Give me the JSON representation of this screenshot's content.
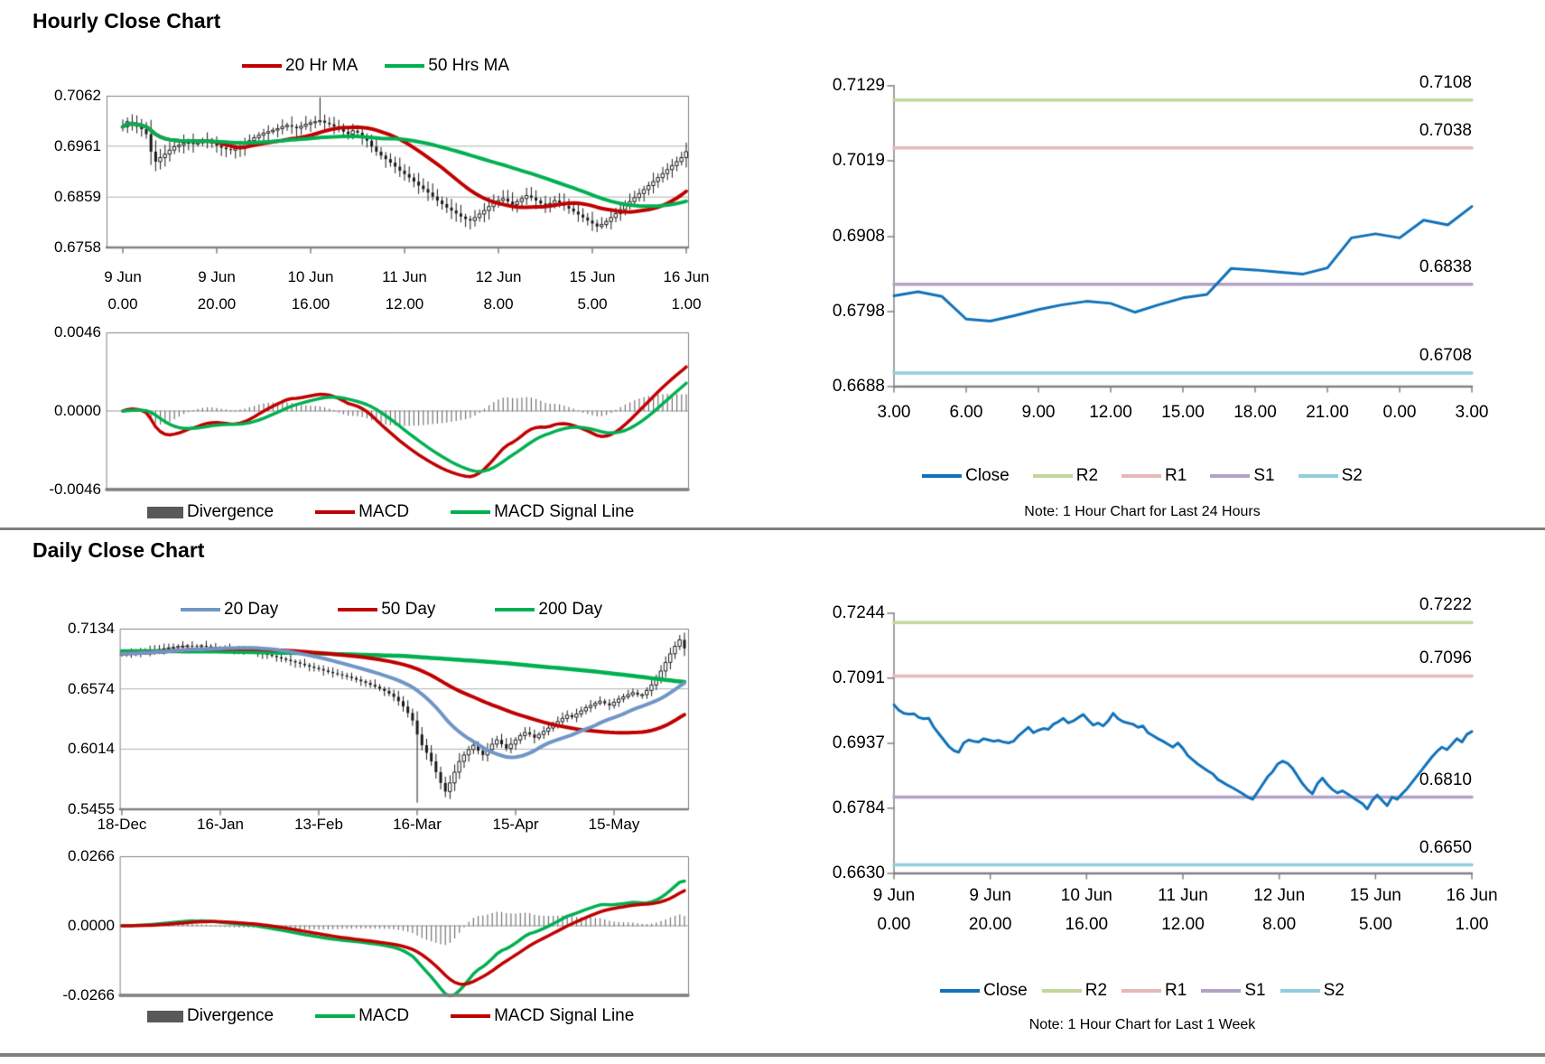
{
  "colors": {
    "red": "#c00000",
    "green": "#00b050",
    "steel_blue": "#7096c5",
    "close_blue": "#1072ba",
    "r2": "#c3d69b",
    "r1": "#e5b9b7",
    "s1": "#b2a2c7",
    "s2": "#92cddc",
    "divergence": "#595959",
    "axis": "#808080",
    "grid": "#b0b0b0",
    "candle": "#1a1a1a"
  },
  "chart_data": {
    "hourly": {
      "title": "Hourly Close Chart",
      "price": {
        "type": "candlestick",
        "y_ticks": [
          "0.7062",
          "0.6961",
          "0.6859",
          "0.6758"
        ],
        "ylim": [
          0.6758,
          0.7062
        ],
        "x_ticks": [
          {
            "date": "9 Jun",
            "time": "0.00"
          },
          {
            "date": "9 Jun",
            "time": "20.00"
          },
          {
            "date": "10 Jun",
            "time": "16.00"
          },
          {
            "date": "11 Jun",
            "time": "12.00"
          },
          {
            "date": "12 Jun",
            "time": "8.00"
          },
          {
            "date": "15 Jun",
            "time": "5.00"
          },
          {
            "date": "16 Jun",
            "time": "1.00"
          }
        ],
        "legend": [
          {
            "label": "20 Hr MA",
            "color": "#c00000"
          },
          {
            "label": "50 Hrs MA",
            "color": "#00b050"
          }
        ],
        "ma_periods": [
          20,
          50
        ],
        "spike_high": {
          "index": 42,
          "value": 0.7058
        },
        "closes": [
          0.7,
          0.701,
          0.7008,
          0.7,
          0.6995,
          0.6985,
          0.695,
          0.693,
          0.6938,
          0.6945,
          0.6953,
          0.696,
          0.6963,
          0.6967,
          0.697,
          0.6965,
          0.6968,
          0.6972,
          0.697,
          0.6966,
          0.6962,
          0.6958,
          0.6955,
          0.6953,
          0.6956,
          0.696,
          0.6965,
          0.6972,
          0.6978,
          0.6983,
          0.6987,
          0.699,
          0.6993,
          0.6996,
          0.7,
          0.7003,
          0.7,
          0.6997,
          0.7001,
          0.7005,
          0.7008,
          0.701,
          0.7012,
          0.7008,
          0.7005,
          0.7,
          0.6995,
          0.699,
          0.6985,
          0.6992,
          0.6988,
          0.698,
          0.6972,
          0.696,
          0.695,
          0.6942,
          0.6935,
          0.6928,
          0.692,
          0.6912,
          0.6905,
          0.6898,
          0.689,
          0.6882,
          0.6875,
          0.6868,
          0.686,
          0.6852,
          0.6845,
          0.6838,
          0.6832,
          0.6826,
          0.682,
          0.6815,
          0.6812,
          0.6818,
          0.6825,
          0.6832,
          0.684,
          0.6847,
          0.6852,
          0.6856,
          0.685,
          0.6844,
          0.685,
          0.6856,
          0.6862,
          0.6858,
          0.6852,
          0.6846,
          0.684,
          0.6846,
          0.6852,
          0.6848,
          0.6842,
          0.6836,
          0.683,
          0.6824,
          0.6818,
          0.6812,
          0.6806,
          0.68,
          0.6804,
          0.681,
          0.6818,
          0.6826,
          0.6834,
          0.6842,
          0.685,
          0.6858,
          0.6866,
          0.6874,
          0.6882,
          0.689,
          0.6898,
          0.6906,
          0.6914,
          0.6922,
          0.693,
          0.6938,
          0.695
        ]
      },
      "macd": {
        "type": "bar+line",
        "y_ticks": [
          "0.0046",
          "0.0000",
          "-0.0046"
        ],
        "ylim": [
          -0.0046,
          0.0046
        ],
        "legend": [
          {
            "label": "Divergence",
            "color": "#595959",
            "shape": "bar"
          },
          {
            "label": "MACD",
            "color": "#c00000"
          },
          {
            "label": "MACD Signal Line",
            "color": "#00b050"
          }
        ]
      }
    },
    "hourly_pivot": {
      "type": "line",
      "note": "Note: 1 Hour Chart for Last 24 Hours",
      "y_ticks": [
        "0.7129",
        "0.7019",
        "0.6908",
        "0.6798",
        "0.6688"
      ],
      "ylim": [
        0.6688,
        0.7129
      ],
      "x_ticks": [
        "3.00",
        "6.00",
        "9.00",
        "12.00",
        "15.00",
        "18.00",
        "21.00",
        "0.00",
        "3.00"
      ],
      "legend": [
        {
          "label": "Close",
          "color": "#1072ba"
        },
        {
          "label": "R2",
          "color": "#c3d69b"
        },
        {
          "label": "R1",
          "color": "#e5b9b7"
        },
        {
          "label": "S1",
          "color": "#b2a2c7"
        },
        {
          "label": "S2",
          "color": "#92cddc"
        }
      ],
      "levels": [
        {
          "name": "R2",
          "value": 0.7108,
          "label": "0.7108",
          "color": "#c3d69b"
        },
        {
          "name": "R1",
          "value": 0.7038,
          "label": "0.7038",
          "color": "#e5b9b7"
        },
        {
          "name": "S1",
          "value": 0.6838,
          "label": "0.6838",
          "color": "#b2a2c7"
        },
        {
          "name": "S2",
          "value": 0.6708,
          "label": "0.6708",
          "color": "#92cddc"
        }
      ],
      "closes": [
        0.6821,
        0.6827,
        0.682,
        0.6787,
        0.6784,
        0.6792,
        0.6801,
        0.6808,
        0.6813,
        0.681,
        0.6797,
        0.6808,
        0.6818,
        0.6823,
        0.6861,
        0.6859,
        0.6856,
        0.6853,
        0.6862,
        0.6906,
        0.6912,
        0.6906,
        0.6932,
        0.6925,
        0.6952
      ]
    },
    "daily": {
      "title": "Daily Close Chart",
      "price": {
        "type": "candlestick",
        "y_ticks": [
          "0.7134",
          "0.6574",
          "0.6014",
          "0.5455"
        ],
        "ylim": [
          0.5455,
          0.7134
        ],
        "x_ticks": [
          "18-Dec",
          "16-Jan",
          "13-Feb",
          "16-Mar",
          "15-Apr",
          "15-May"
        ],
        "legend": [
          {
            "label": "20 Day",
            "color": "#7096c5"
          },
          {
            "label": "50 Day",
            "color": "#c00000"
          },
          {
            "label": "200 Day",
            "color": "#00b050"
          }
        ],
        "ma_periods": [
          20,
          50
        ],
        "ma200_keypoints": [
          [
            0,
            0.6925
          ],
          [
            20,
            0.6922
          ],
          [
            40,
            0.6905
          ],
          [
            60,
            0.688
          ],
          [
            80,
            0.682
          ],
          [
            90,
            0.678
          ],
          [
            100,
            0.674
          ],
          [
            108,
            0.67
          ],
          [
            114,
            0.6668
          ],
          [
            120,
            0.6638
          ]
        ],
        "spike_low": {
          "index": 63,
          "value": 0.552
        },
        "closes": [
          0.69,
          0.6905,
          0.691,
          0.6908,
          0.6915,
          0.692,
          0.6928,
          0.6935,
          0.694,
          0.6948,
          0.6955,
          0.696,
          0.6968,
          0.6972,
          0.6975,
          0.6972,
          0.6968,
          0.6975,
          0.697,
          0.6962,
          0.6955,
          0.6948,
          0.6952,
          0.6945,
          0.694,
          0.6942,
          0.6938,
          0.693,
          0.6922,
          0.6912,
          0.69,
          0.689,
          0.688,
          0.6868,
          0.6856,
          0.6844,
          0.6832,
          0.682,
          0.6808,
          0.6795,
          0.6782,
          0.677,
          0.6758,
          0.6745,
          0.6732,
          0.672,
          0.671,
          0.67,
          0.6688,
          0.6675,
          0.666,
          0.6645,
          0.663,
          0.6612,
          0.6595,
          0.6575,
          0.6555,
          0.653,
          0.65,
          0.646,
          0.641,
          0.635,
          0.628,
          0.615,
          0.605,
          0.598,
          0.59,
          0.58,
          0.57,
          0.562,
          0.57,
          0.58,
          0.59,
          0.596,
          0.601,
          0.605,
          0.6,
          0.596,
          0.601,
          0.606,
          0.61,
          0.606,
          0.602,
          0.606,
          0.61,
          0.614,
          0.617,
          0.615,
          0.612,
          0.615,
          0.618,
          0.621,
          0.624,
          0.627,
          0.63,
          0.633,
          0.631,
          0.634,
          0.637,
          0.64,
          0.642,
          0.644,
          0.646,
          0.644,
          0.642,
          0.645,
          0.648,
          0.65,
          0.652,
          0.654,
          0.652,
          0.652,
          0.656,
          0.661,
          0.667,
          0.674,
          0.682,
          0.69,
          0.697,
          0.703,
          0.695
        ]
      },
      "macd": {
        "type": "bar+line",
        "y_ticks": [
          "0.0266",
          "0.0000",
          "-0.0266"
        ],
        "ylim": [
          -0.0266,
          0.0266
        ],
        "legend": [
          {
            "label": "Divergence",
            "color": "#595959",
            "shape": "bar"
          },
          {
            "label": "MACD",
            "color": "#00b050"
          },
          {
            "label": "MACD Signal Line",
            "color": "#c00000"
          }
        ]
      }
    },
    "daily_pivot": {
      "type": "line",
      "note": "Note: 1 Hour Chart for Last 1 Week",
      "y_ticks": [
        "0.7244",
        "0.7091",
        "0.6937",
        "0.6784",
        "0.6630"
      ],
      "ylim": [
        0.663,
        0.7244
      ],
      "x_ticks": [
        {
          "date": "9 Jun",
          "time": "0.00"
        },
        {
          "date": "9 Jun",
          "time": "20.00"
        },
        {
          "date": "10 Jun",
          "time": "16.00"
        },
        {
          "date": "11 Jun",
          "time": "12.00"
        },
        {
          "date": "12 Jun",
          "time": "8.00"
        },
        {
          "date": "15 Jun",
          "time": "5.00"
        },
        {
          "date": "16 Jun",
          "time": "1.00"
        }
      ],
      "legend": [
        {
          "label": "Close",
          "color": "#1072ba"
        },
        {
          "label": "R2",
          "color": "#c3d69b"
        },
        {
          "label": "R1",
          "color": "#e5b9b7"
        },
        {
          "label": "S1",
          "color": "#b2a2c7"
        },
        {
          "label": "S2",
          "color": "#92cddc"
        }
      ],
      "levels": [
        {
          "name": "R2",
          "value": 0.7222,
          "label": "0.7222",
          "color": "#c3d69b"
        },
        {
          "name": "R1",
          "value": 0.7096,
          "label": "0.7096",
          "color": "#e5b9b7"
        },
        {
          "name": "S1",
          "value": 0.681,
          "label": "0.6810",
          "color": "#b2a2c7"
        },
        {
          "name": "S2",
          "value": 0.665,
          "label": "0.6650",
          "color": "#92cddc"
        }
      ],
      "closes": [
        0.7028,
        0.7015,
        0.7008,
        0.7006,
        0.7007,
        0.6998,
        0.6995,
        0.6996,
        0.6975,
        0.696,
        0.6945,
        0.693,
        0.692,
        0.6916,
        0.6938,
        0.6945,
        0.6942,
        0.694,
        0.6948,
        0.6945,
        0.6942,
        0.6944,
        0.694,
        0.6938,
        0.6942,
        0.6955,
        0.6965,
        0.6975,
        0.6962,
        0.6968,
        0.6972,
        0.697,
        0.6982,
        0.6988,
        0.6996,
        0.6985,
        0.699,
        0.6998,
        0.7005,
        0.6992,
        0.698,
        0.6985,
        0.6978,
        0.699,
        0.7008,
        0.6995,
        0.6988,
        0.6985,
        0.6982,
        0.6975,
        0.6978,
        0.6962,
        0.6955,
        0.6948,
        0.6942,
        0.6935,
        0.6928,
        0.6938,
        0.6925,
        0.6908,
        0.6898,
        0.6888,
        0.688,
        0.6872,
        0.6865,
        0.6852,
        0.6845,
        0.6838,
        0.6832,
        0.6825,
        0.6818,
        0.681,
        0.6805,
        0.6822,
        0.684,
        0.6858,
        0.687,
        0.6888,
        0.6895,
        0.689,
        0.6878,
        0.686,
        0.6842,
        0.6828,
        0.6818,
        0.6842,
        0.6855,
        0.684,
        0.6828,
        0.682,
        0.6825,
        0.6818,
        0.681,
        0.6802,
        0.6795,
        0.6782,
        0.6802,
        0.6815,
        0.6802,
        0.679,
        0.681,
        0.6805,
        0.6818,
        0.683,
        0.6845,
        0.686,
        0.6875,
        0.689,
        0.6905,
        0.6918,
        0.6928,
        0.6922,
        0.6935,
        0.6948,
        0.694,
        0.6958,
        0.6965
      ]
    }
  }
}
